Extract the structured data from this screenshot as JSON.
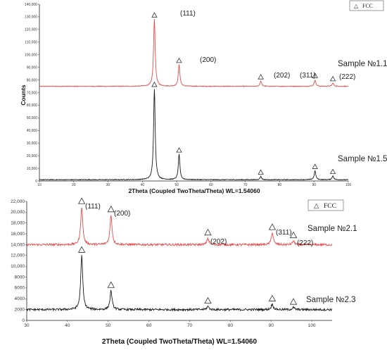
{
  "chart_data": [
    {
      "type": "line",
      "xlabel": "2Theta (Coupled TwoTheta/Theta) WL=1.54060",
      "ylabel": "Counts",
      "xlim": [
        10,
        100
      ],
      "ylim": [
        0,
        140000
      ],
      "x_ticks": [
        "10",
        "20",
        "30",
        "40",
        "50",
        "60",
        "70",
        "80",
        "90",
        "100"
      ],
      "y_ticks": [
        "0",
        "10,000",
        "20,000",
        "30,000",
        "40,000",
        "50,000",
        "60,000",
        "70,000",
        "80,000",
        "90,000",
        "100,000",
        "110,000",
        "120,000",
        "130,000",
        "140,000"
      ],
      "legend": {
        "symbol": "△",
        "label": "FCC",
        "position": "top-right"
      },
      "series": [
        {
          "name": "Sample №1.1",
          "color": "#e74c4c",
          "baseline": 75000,
          "peaks": [
            {
              "x": 43.5,
              "y": 128000,
              "label": "(111)"
            },
            {
              "x": 50.7,
              "y": 92000,
              "label": "(200)"
            },
            {
              "x": 74.5,
              "y": 79000,
              "label": "(202)"
            },
            {
              "x": 90.3,
              "y": 80000,
              "label": "(311)"
            },
            {
              "x": 95.5,
              "y": 77500,
              "label": "(222)"
            }
          ]
        },
        {
          "name": "Sample №1.5",
          "color": "#1a1a1a",
          "baseline": 1000,
          "peaks": [
            {
              "x": 43.5,
              "y": 73000,
              "label": ""
            },
            {
              "x": 50.7,
              "y": 21000,
              "label": ""
            },
            {
              "x": 74.5,
              "y": 3500,
              "label": ""
            },
            {
              "x": 90.3,
              "y": 8000,
              "label": ""
            },
            {
              "x": 95.5,
              "y": 4000,
              "label": ""
            }
          ]
        }
      ]
    },
    {
      "type": "line",
      "xlabel": "2Theta (Coupled TwoTheta/Theta) WL=1.54060",
      "ylabel": "",
      "xlim": [
        30,
        105
      ],
      "ylim": [
        0,
        22000
      ],
      "x_ticks": [
        "30",
        "40",
        "50",
        "60",
        "70",
        "80",
        "90",
        "100"
      ],
      "y_ticks": [
        "0",
        "2000",
        "4000",
        "6000",
        "8000",
        "10,000",
        "12,000",
        "14,000",
        "16,000",
        "18,000",
        "20,000",
        "22,000"
      ],
      "legend": {
        "symbol": "△",
        "label": "FCC",
        "position": "top-right"
      },
      "series": [
        {
          "name": "Sample №2.1",
          "color": "#e74c4c",
          "baseline": 14000,
          "peaks": [
            {
              "x": 43.5,
              "y": 21000,
              "label": "(111)"
            },
            {
              "x": 50.7,
              "y": 19500,
              "label": "(200)"
            },
            {
              "x": 74.5,
              "y": 15200,
              "label": "(202)"
            },
            {
              "x": 90.3,
              "y": 16200,
              "label": "(311)"
            },
            {
              "x": 95.5,
              "y": 14700,
              "label": "(222)"
            }
          ]
        },
        {
          "name": "Sample №2.3",
          "color": "#1a1a1a",
          "baseline": 2000,
          "peaks": [
            {
              "x": 43.5,
              "y": 12000,
              "label": ""
            },
            {
              "x": 50.7,
              "y": 5500,
              "label": ""
            },
            {
              "x": 74.5,
              "y": 2600,
              "label": ""
            },
            {
              "x": 90.3,
              "y": 3000,
              "label": ""
            },
            {
              "x": 95.5,
              "y": 2400,
              "label": ""
            }
          ]
        }
      ]
    }
  ],
  "labels": {
    "s11": "Sample №1.1",
    "s15": "Sample №1.5",
    "s21": "Sample №2.1",
    "s23": "Sample №2.3",
    "counts": "Counts",
    "xlabel": "2Theta (Coupled TwoTheta/Theta) WL=1.54060",
    "legend_sym": "△",
    "legend_fcc": "FCC",
    "p111": "(111)",
    "p200": "(200)",
    "p202": "(202)",
    "p311": "(311)",
    "p222": "(222)"
  }
}
